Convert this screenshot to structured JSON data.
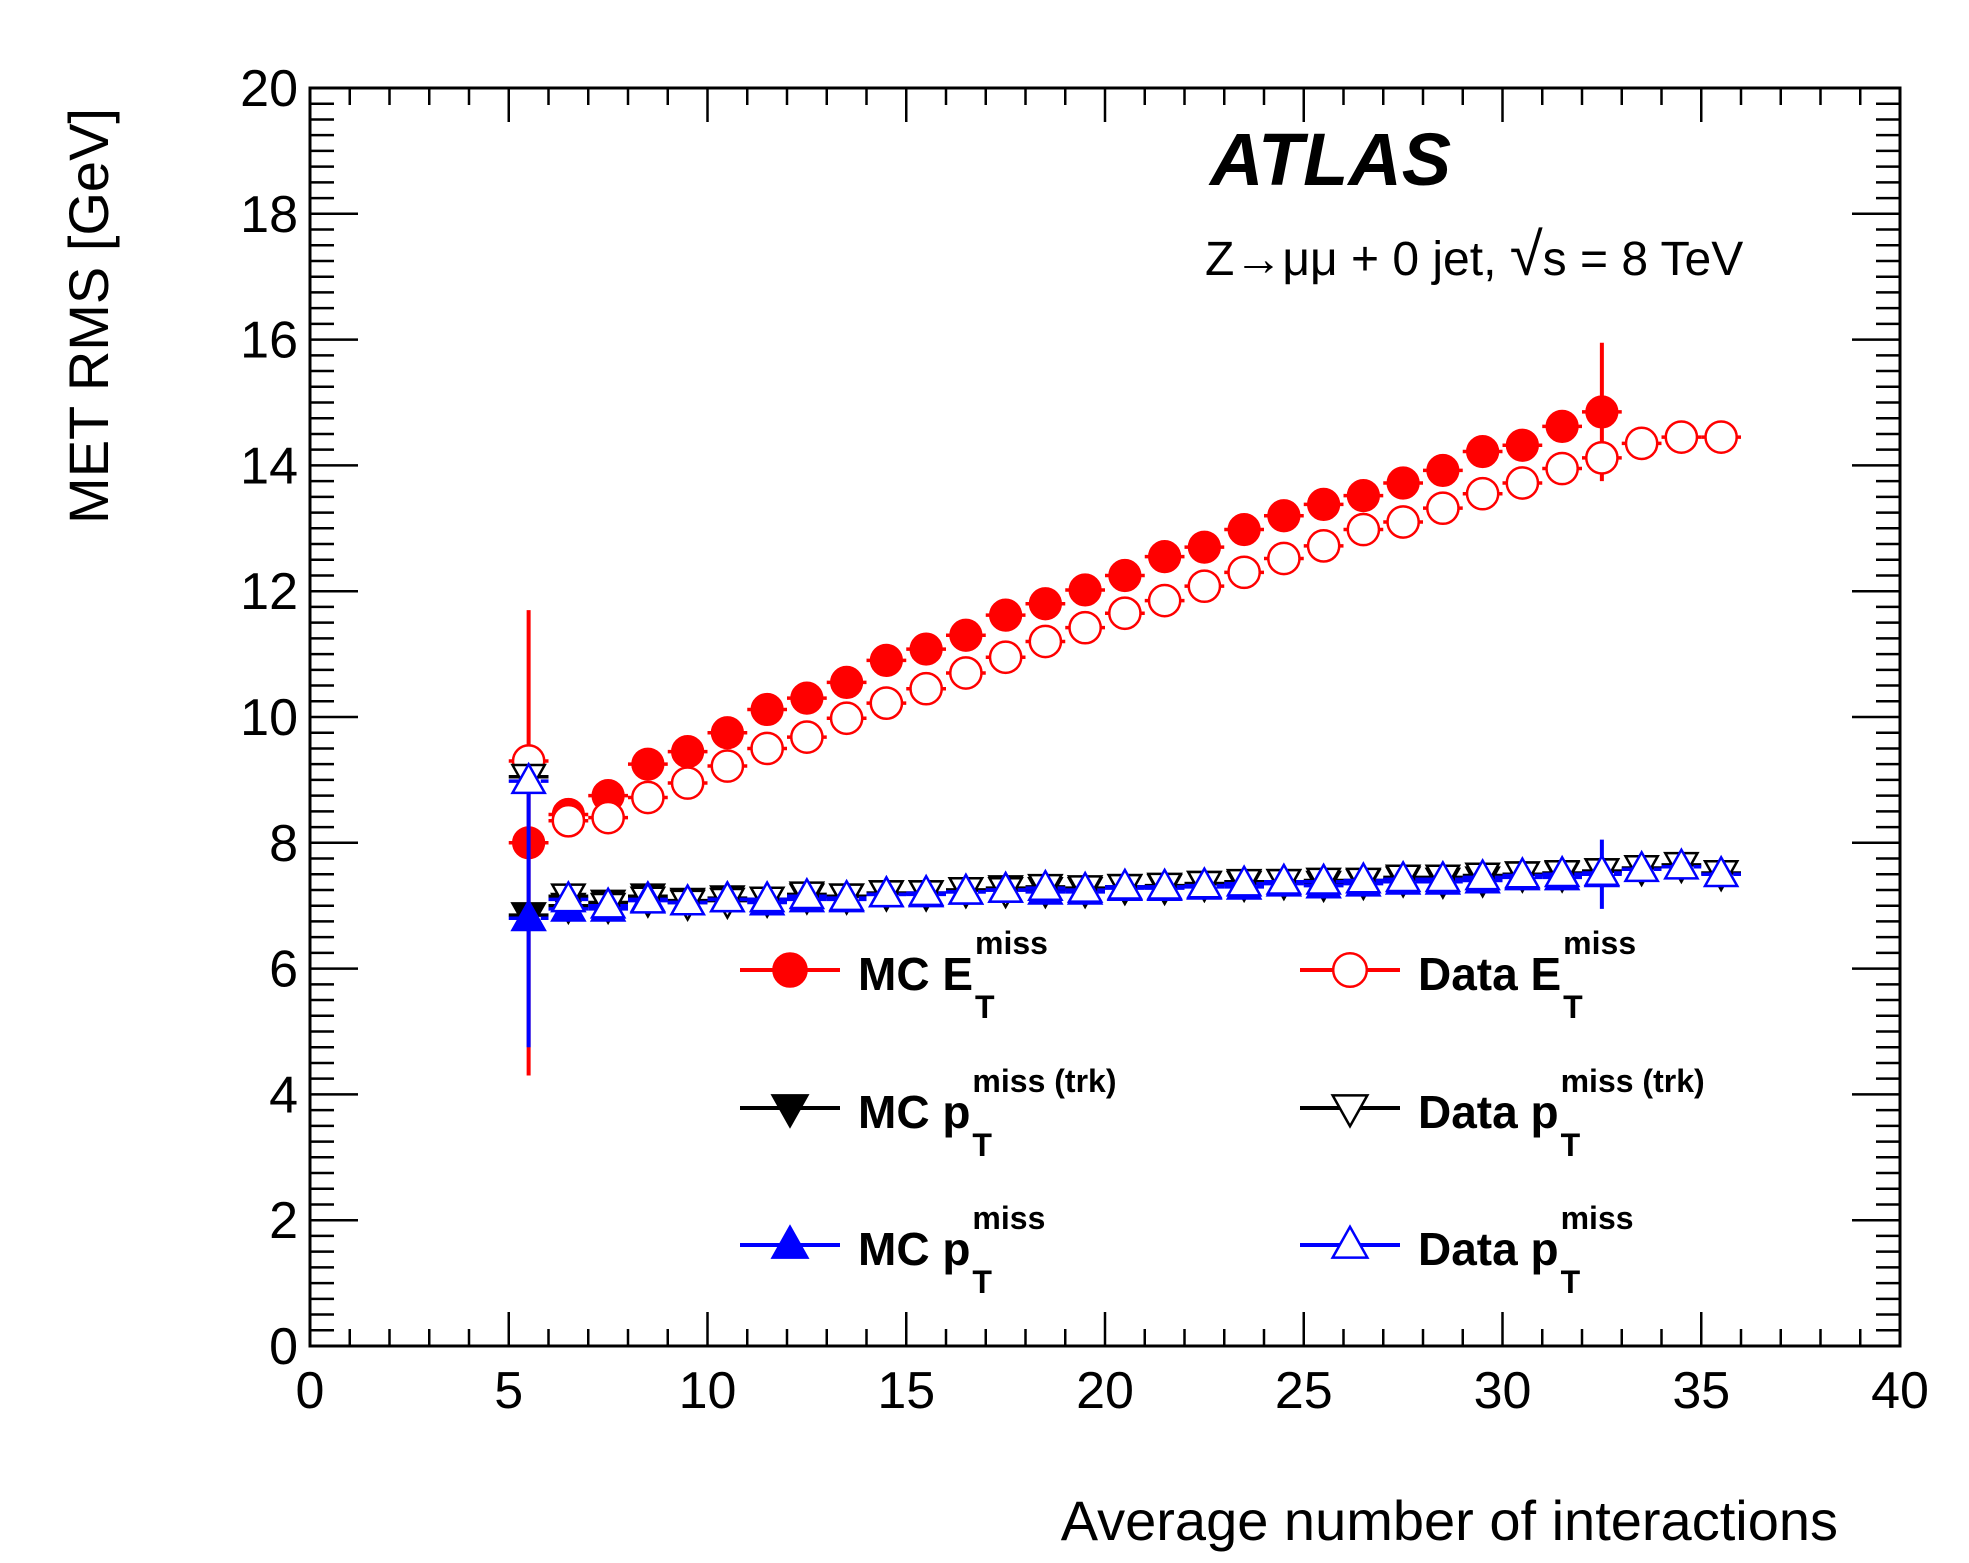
{
  "chart_data": {
    "type": "scatter",
    "title": "",
    "xlabel": "Average number of interactions",
    "ylabel": "MET RMS [GeV]",
    "xlim": [
      0,
      40
    ],
    "ylim": [
      0,
      20
    ],
    "x_ticks": [
      "0",
      "5",
      "10",
      "15",
      "20",
      "25",
      "30",
      "35",
      "40"
    ],
    "y_ticks": [
      "0",
      "2",
      "4",
      "6",
      "8",
      "10",
      "12",
      "14",
      "16",
      "18",
      "20"
    ],
    "grid": false,
    "legend_position": "bottom-center",
    "annotations": {
      "experiment": "ATLAS",
      "process_prefix": "Z→μμ + 0 jet, ",
      "sqrt": "√",
      "energy": "s = 8 TeV"
    },
    "series": [
      {
        "name": "MC E_T^miss",
        "label_main": "MC E",
        "label_sup": "miss",
        "label_sub": "T",
        "color": "#ff0000",
        "marker": "circle-filled",
        "x": [
          5.5,
          6.5,
          7.5,
          8.5,
          9.5,
          10.5,
          11.5,
          12.5,
          13.5,
          14.5,
          15.5,
          16.5,
          17.5,
          18.5,
          19.5,
          20.5,
          21.5,
          22.5,
          23.5,
          24.5,
          25.5,
          26.5,
          27.5,
          28.5,
          29.5,
          30.5,
          31.5,
          32.5
        ],
        "y": [
          8.0,
          8.45,
          8.75,
          9.25,
          9.45,
          9.75,
          10.12,
          10.3,
          10.55,
          10.9,
          11.08,
          11.3,
          11.62,
          11.8,
          12.02,
          12.25,
          12.55,
          12.7,
          12.98,
          13.2,
          13.38,
          13.52,
          13.72,
          13.92,
          14.22,
          14.32,
          14.62,
          14.85
        ],
        "yerr": [
          3.7,
          0.1,
          0.1,
          0.1,
          0.1,
          0.1,
          0.1,
          0.1,
          0.1,
          0.1,
          0.1,
          0.1,
          0.1,
          0.1,
          0.1,
          0.1,
          0.1,
          0.1,
          0.1,
          0.1,
          0.1,
          0.1,
          0.1,
          0.1,
          0.1,
          0.1,
          0.25,
          1.1
        ]
      },
      {
        "name": "Data E_T^miss",
        "label_main": "Data E",
        "label_sup": "miss",
        "label_sub": "T",
        "color": "#ff0000",
        "marker": "circle-open",
        "x": [
          5.5,
          6.5,
          7.5,
          8.5,
          9.5,
          10.5,
          11.5,
          12.5,
          13.5,
          14.5,
          15.5,
          16.5,
          17.5,
          18.5,
          19.5,
          20.5,
          21.5,
          22.5,
          23.5,
          24.5,
          25.5,
          26.5,
          27.5,
          28.5,
          29.5,
          30.5,
          31.5,
          32.5,
          33.5,
          34.5,
          35.5
        ],
        "y": [
          9.3,
          8.35,
          8.4,
          8.72,
          8.95,
          9.22,
          9.5,
          9.68,
          9.98,
          10.22,
          10.45,
          10.7,
          10.95,
          11.2,
          11.42,
          11.65,
          11.85,
          12.08,
          12.3,
          12.52,
          12.72,
          12.98,
          13.1,
          13.32,
          13.55,
          13.72,
          13.95,
          14.12,
          14.35,
          14.45,
          14.45
        ]
      },
      {
        "name": "MC p_T^miss (trk)",
        "label_main": "MC p",
        "label_sup": "miss (trk)",
        "label_sub": "T",
        "color": "#000000",
        "marker": "triangle-down-filled",
        "x": [
          5.5,
          6.5,
          7.5,
          8.5,
          9.5,
          10.5,
          11.5,
          12.5,
          13.5,
          14.5,
          15.5,
          16.5,
          17.5,
          18.5,
          19.5,
          20.5,
          21.5,
          22.5,
          23.5,
          24.5,
          25.5,
          26.5,
          27.5,
          28.5,
          29.5,
          30.5,
          31.5,
          32.5
        ],
        "y": [
          6.85,
          7.0,
          7.05,
          7.15,
          7.08,
          7.12,
          7.1,
          7.15,
          7.15,
          7.2,
          7.2,
          7.25,
          7.28,
          7.25,
          7.25,
          7.3,
          7.3,
          7.35,
          7.35,
          7.38,
          7.35,
          7.38,
          7.42,
          7.4,
          7.42,
          7.5,
          7.5,
          7.55
        ]
      },
      {
        "name": "Data p_T^miss (trk)",
        "label_main": "Data p",
        "label_sup": "miss (trk)",
        "label_sub": "T",
        "color": "#000000",
        "marker": "triangle-down-open",
        "x": [
          5.5,
          6.5,
          7.5,
          8.5,
          9.5,
          10.5,
          11.5,
          12.5,
          13.5,
          14.5,
          15.5,
          16.5,
          17.5,
          18.5,
          19.5,
          20.5,
          21.5,
          22.5,
          23.5,
          24.5,
          25.5,
          26.5,
          27.5,
          28.5,
          29.5,
          30.5,
          31.5,
          32.5,
          33.5,
          34.5,
          35.5
        ],
        "y": [
          9.05,
          7.15,
          7.0,
          7.1,
          7.05,
          7.08,
          7.1,
          7.18,
          7.15,
          7.2,
          7.2,
          7.25,
          7.25,
          7.3,
          7.28,
          7.3,
          7.32,
          7.35,
          7.38,
          7.38,
          7.4,
          7.4,
          7.45,
          7.45,
          7.48,
          7.5,
          7.52,
          7.55,
          7.6,
          7.65,
          7.52
        ]
      },
      {
        "name": "MC p_T^miss",
        "label_main": "MC p",
        "label_sup": "miss",
        "label_sub": "T",
        "color": "#0000ff",
        "marker": "triangle-up-filled",
        "x": [
          5.5,
          6.5,
          7.5,
          8.5,
          9.5,
          10.5,
          11.5,
          12.5,
          13.5,
          14.5,
          15.5,
          16.5,
          17.5,
          18.5,
          19.5,
          20.5,
          21.5,
          22.5,
          23.5,
          24.5,
          25.5,
          26.5,
          27.5,
          28.5,
          29.5,
          30.5,
          31.5,
          32.5
        ],
        "y": [
          6.8,
          6.95,
          6.95,
          7.1,
          7.05,
          7.1,
          7.05,
          7.1,
          7.1,
          7.18,
          7.18,
          7.22,
          7.25,
          7.22,
          7.22,
          7.28,
          7.28,
          7.3,
          7.3,
          7.35,
          7.32,
          7.35,
          7.38,
          7.38,
          7.4,
          7.45,
          7.45,
          7.5
        ],
        "yerr": [
          2.05,
          0.1,
          0.1,
          0.1,
          0.1,
          0.1,
          0.1,
          0.1,
          0.1,
          0.1,
          0.1,
          0.1,
          0.1,
          0.1,
          0.1,
          0.1,
          0.1,
          0.1,
          0.1,
          0.1,
          0.1,
          0.1,
          0.1,
          0.1,
          0.1,
          0.1,
          0.1,
          0.55
        ]
      },
      {
        "name": "Data p_T^miss",
        "label_main": "Data p",
        "label_sup": "miss",
        "label_sub": "T",
        "color": "#0000ff",
        "marker": "triangle-up-open",
        "x": [
          5.5,
          6.5,
          7.5,
          8.5,
          9.5,
          10.5,
          11.5,
          12.5,
          13.5,
          14.5,
          15.5,
          16.5,
          17.5,
          18.5,
          19.5,
          20.5,
          21.5,
          22.5,
          23.5,
          24.5,
          25.5,
          26.5,
          27.5,
          28.5,
          29.5,
          30.5,
          31.5,
          32.5,
          33.5,
          34.5,
          35.5
        ],
        "y": [
          8.98,
          7.1,
          7.0,
          7.08,
          7.05,
          7.1,
          7.1,
          7.15,
          7.12,
          7.18,
          7.2,
          7.22,
          7.25,
          7.28,
          7.25,
          7.3,
          7.3,
          7.32,
          7.35,
          7.38,
          7.38,
          7.4,
          7.42,
          7.42,
          7.45,
          7.48,
          7.5,
          7.52,
          7.58,
          7.62,
          7.5
        ]
      }
    ]
  }
}
